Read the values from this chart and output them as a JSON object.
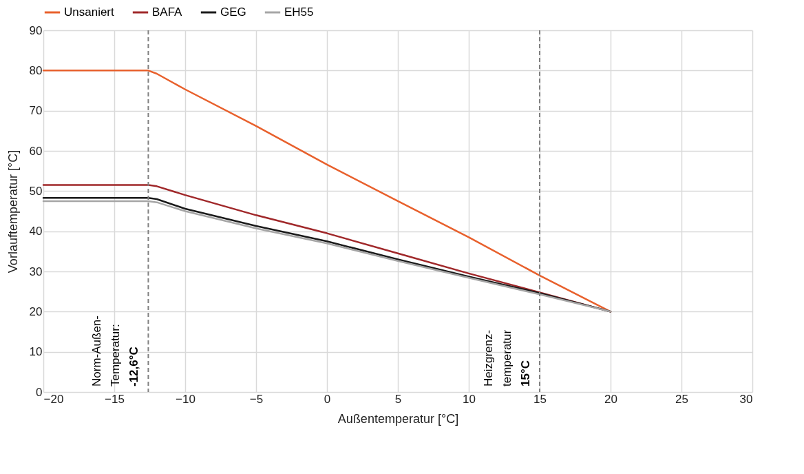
{
  "chart_data": {
    "type": "line",
    "xlabel": "Außentemperatur [°C]",
    "ylabel": "Vorlauftemperatur [°C]",
    "x": [
      -20,
      -12.6,
      -12,
      -10,
      -5,
      0,
      5,
      10,
      15,
      20
    ],
    "series": [
      {
        "name": "Unsaniert",
        "color": "#e8602c",
        "values": [
          80,
          80,
          79.2,
          75.3,
          66.2,
          56.6,
          47.5,
          38.5,
          29,
          20
        ]
      },
      {
        "name": "BAFA",
        "color": "#a0282a",
        "values": [
          51.5,
          51.5,
          51.2,
          49,
          44,
          39.5,
          34.5,
          29.5,
          24.8,
          20
        ]
      },
      {
        "name": "GEG",
        "color": "#1a1a1a",
        "values": [
          48.3,
          48.3,
          48,
          45.6,
          41.3,
          37.5,
          33,
          28.7,
          24.6,
          20
        ]
      },
      {
        "name": "EH55",
        "color": "#a6a6a6",
        "values": [
          47.5,
          47.5,
          47.2,
          45,
          40.7,
          37,
          32.6,
          28.4,
          24.3,
          20
        ]
      }
    ],
    "xlim": [
      -20,
      30
    ],
    "xticks": [
      -20,
      -15,
      -10,
      -5,
      0,
      5,
      10,
      15,
      20,
      25,
      30
    ],
    "ylim": [
      0,
      90
    ],
    "yticks": [
      0,
      10,
      20,
      30,
      40,
      50,
      60,
      70,
      80,
      90
    ],
    "ref_lines": [
      {
        "axis": "x",
        "value": -12.6,
        "label": "Norm-Außen-\nTemperatur:\n-12,6°C",
        "color": "#808080",
        "line_style": "dashed"
      },
      {
        "axis": "x",
        "value": 15,
        "label": "Heizgrenz-\ntemperatur\n15°C",
        "color": "#808080",
        "line_style": "dashed"
      }
    ],
    "grid": true,
    "legend": "top",
    "marker": "none",
    "line_style": "solid"
  }
}
